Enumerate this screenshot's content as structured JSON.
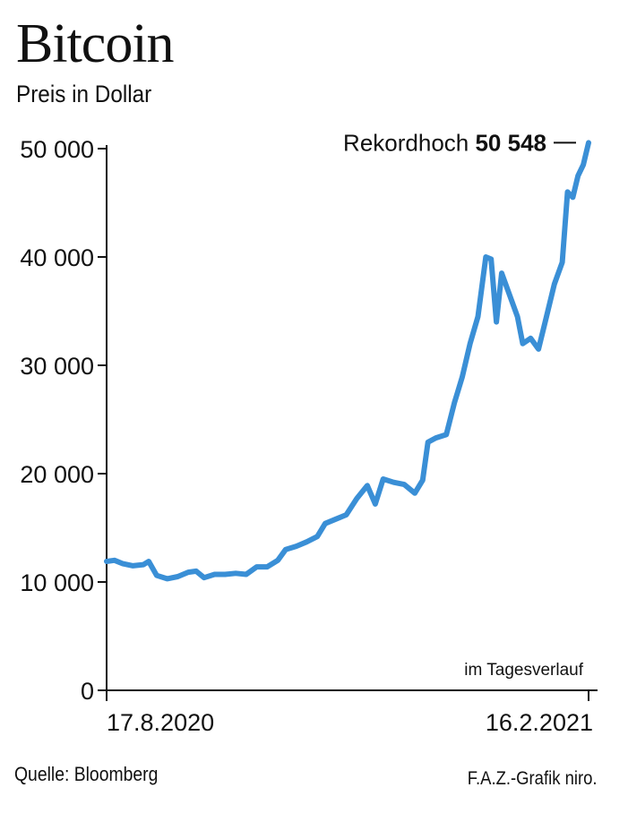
{
  "header": {
    "title": "Bitcoin",
    "subtitle": "Preis in Dollar"
  },
  "footer": {
    "source": "Quelle: Bloomberg",
    "credit": "F.A.Z.-Grafik niro."
  },
  "chart_data": {
    "type": "line",
    "title": "Bitcoin",
    "subtitle": "Preis in Dollar",
    "xlabel": "",
    "ylabel": "",
    "ylim": [
      0,
      50000
    ],
    "yticks": [
      0,
      10000,
      20000,
      30000,
      40000,
      50000
    ],
    "ytick_labels": [
      "0",
      "10 000",
      "20 000",
      "30 000",
      "40 000",
      "50 000"
    ],
    "xlim": [
      "2020-08-17",
      "2021-02-16"
    ],
    "xtick_labels": [
      "17.8.2020",
      "16.2.2021"
    ],
    "note": "im Tagesverlauf",
    "annotation": {
      "prefix": "Rekordhoch",
      "value_label": "50 548",
      "value": 50548,
      "date": "2021-02-16"
    },
    "series": [
      {
        "color": "#3a8fd6",
        "points": [
          [
            "2020-08-17",
            11900
          ],
          [
            "2020-08-20",
            12000
          ],
          [
            "2020-08-23",
            11700
          ],
          [
            "2020-08-27",
            11500
          ],
          [
            "2020-08-31",
            11600
          ],
          [
            "2020-09-02",
            11900
          ],
          [
            "2020-09-05",
            10600
          ],
          [
            "2020-09-09",
            10300
          ],
          [
            "2020-09-13",
            10500
          ],
          [
            "2020-09-17",
            10900
          ],
          [
            "2020-09-20",
            11000
          ],
          [
            "2020-09-23",
            10400
          ],
          [
            "2020-09-27",
            10700
          ],
          [
            "2020-10-01",
            10700
          ],
          [
            "2020-10-05",
            10800
          ],
          [
            "2020-10-09",
            10700
          ],
          [
            "2020-10-13",
            11400
          ],
          [
            "2020-10-17",
            11400
          ],
          [
            "2020-10-21",
            12000
          ],
          [
            "2020-10-24",
            13000
          ],
          [
            "2020-10-28",
            13300
          ],
          [
            "2020-11-01",
            13700
          ],
          [
            "2020-11-05",
            14200
          ],
          [
            "2020-11-08",
            15400
          ],
          [
            "2020-11-12",
            15800
          ],
          [
            "2020-11-16",
            16200
          ],
          [
            "2020-11-20",
            17700
          ],
          [
            "2020-11-24",
            18900
          ],
          [
            "2020-11-27",
            17200
          ],
          [
            "2020-11-30",
            19500
          ],
          [
            "2020-12-04",
            19200
          ],
          [
            "2020-12-08",
            19000
          ],
          [
            "2020-12-12",
            18200
          ],
          [
            "2020-12-15",
            19400
          ],
          [
            "2020-12-17",
            22900
          ],
          [
            "2020-12-20",
            23300
          ],
          [
            "2020-12-24",
            23600
          ],
          [
            "2020-12-27",
            26500
          ],
          [
            "2020-12-30",
            28900
          ],
          [
            "2021-01-02",
            32000
          ],
          [
            "2021-01-05",
            34500
          ],
          [
            "2021-01-08",
            40000
          ],
          [
            "2021-01-10",
            39800
          ],
          [
            "2021-01-12",
            34000
          ],
          [
            "2021-01-14",
            38500
          ],
          [
            "2021-01-17",
            36500
          ],
          [
            "2021-01-20",
            34500
          ],
          [
            "2021-01-22",
            32000
          ],
          [
            "2021-01-25",
            32500
          ],
          [
            "2021-01-28",
            31500
          ],
          [
            "2021-01-31",
            34500
          ],
          [
            "2021-02-03",
            37500
          ],
          [
            "2021-02-06",
            39500
          ],
          [
            "2021-02-08",
            46000
          ],
          [
            "2021-02-10",
            45500
          ],
          [
            "2021-02-12",
            47500
          ],
          [
            "2021-02-14",
            48500
          ],
          [
            "2021-02-16",
            50548
          ]
        ]
      }
    ],
    "grid": false,
    "legend": "none"
  }
}
